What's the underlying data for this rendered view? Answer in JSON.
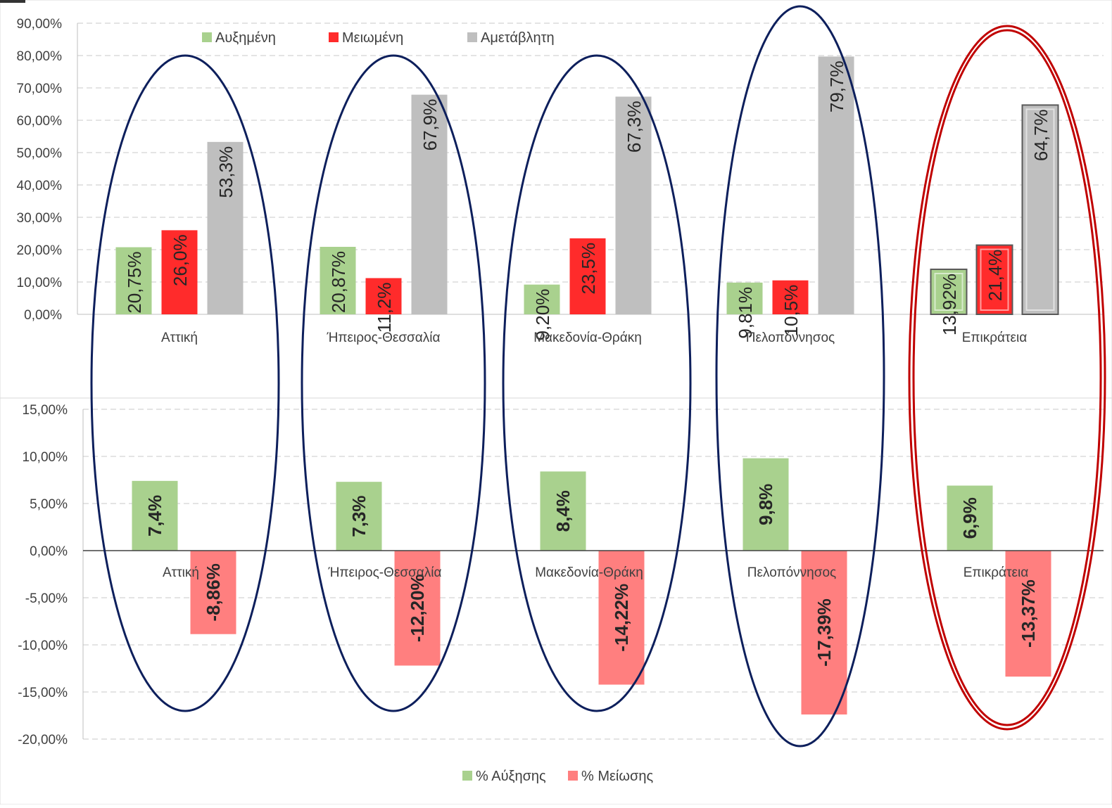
{
  "chart_data": [
    {
      "type": "bar",
      "title": "",
      "xlabel": "",
      "ylabel": "",
      "ylim": [
        0,
        90
      ],
      "yticks": [
        "0,00%",
        "10,00%",
        "20,00%",
        "30,00%",
        "40,00%",
        "50,00%",
        "60,00%",
        "70,00%",
        "80,00%",
        "90,00%"
      ],
      "grid": true,
      "legend_position": "top",
      "categories": [
        "Αττική",
        "Ήπειρος-Θεσσαλία",
        "Μακεδονία-Θράκη",
        "Πελοπόννησος",
        "Επικράτεια"
      ],
      "series": [
        {
          "name": "Αυξημένη",
          "color": "#a9d18e",
          "values": [
            20.75,
            20.87,
            9.2,
            9.81,
            13.92
          ],
          "labels": [
            "20,75%",
            "20,87%",
            "9,20%",
            "9,81%",
            "13,92%"
          ]
        },
        {
          "name": "Μειωμένη",
          "color": "#ff2b2b",
          "values": [
            26.0,
            11.2,
            23.5,
            10.5,
            21.4
          ],
          "labels": [
            "26,0%",
            "11,2%",
            "23,5%",
            "10,5%",
            "21,4%"
          ]
        },
        {
          "name": "Αμετάβλητη",
          "color": "#bfbfbf",
          "values": [
            53.3,
            67.9,
            67.3,
            79.7,
            64.7
          ],
          "labels": [
            "53,3%",
            "67,9%",
            "67,3%",
            "79,7%",
            "64,7%"
          ]
        }
      ]
    },
    {
      "type": "bar",
      "title": "",
      "xlabel": "",
      "ylabel": "",
      "ylim": [
        -20,
        15
      ],
      "yticks": [
        "-20,00%",
        "-15,00%",
        "-10,00%",
        "-5,00%",
        "0,00%",
        "5,00%",
        "10,00%",
        "15,00%"
      ],
      "grid": true,
      "legend_position": "bottom",
      "categories": [
        "Αττική",
        "Ήπειρος-Θεσσαλία",
        "Μακεδονία-Θράκη",
        "Πελοπόννησος",
        "Επικράτεια"
      ],
      "series": [
        {
          "name": "% Αύξησης",
          "color": "#a9d18e",
          "values": [
            7.4,
            7.3,
            8.4,
            9.8,
            6.9
          ],
          "labels": [
            "7,4%",
            "7,3%",
            "8,4%",
            "9,8%",
            "6,9%"
          ]
        },
        {
          "name": "% Μείωσης",
          "color": "#ff7f7f",
          "values": [
            -8.86,
            -12.2,
            -14.22,
            -17.39,
            -13.37
          ],
          "labels": [
            "-8,86%",
            "-12,20%",
            "-14,22%",
            "-17,39%",
            "-13,37%"
          ]
        }
      ]
    }
  ],
  "highlight_colors": {
    "regions": "#0d1f5c",
    "total": "#c00000"
  }
}
